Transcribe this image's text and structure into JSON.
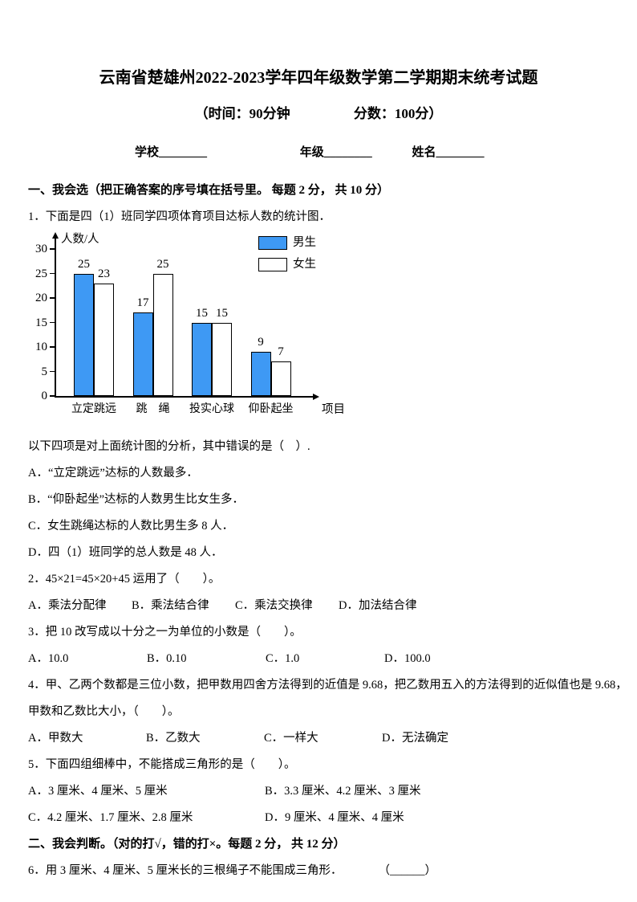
{
  "title": "云南省楚雄州2022-2023学年四年级数学第二学期期末统考试题",
  "subtitle": {
    "time": "（时间：90分钟",
    "score": "分数：100分）"
  },
  "fields": {
    "school": "学校________",
    "grade": "年级________",
    "name": "姓名________"
  },
  "section_one": {
    "heading": "一、我会选（把正确答案的序号填在括号里。 每题 2 分， 共 10 分）"
  },
  "q1": {
    "text": "1．下面是四（1）班同学四项体育项目达标人数的统计图．",
    "analysis": "以下四项是对上面统计图的分析，其中错误的是（　）.",
    "options": [
      "A．“立定跳远”达标的人数最多．",
      "B．“仰卧起坐”达标的人数男生比女生多．",
      "C．女生跳绳达标的人数比男生多 8 人．",
      "D．四（1）班同学的总人数是 48 人．"
    ]
  },
  "q2": {
    "text": "2．45×21=45×20+45 运用了（　　）。",
    "options": [
      "A．乘法分配律",
      "B．乘法结合律",
      "C．乘法交换律",
      "D．加法结合律"
    ]
  },
  "q3": {
    "text": "3．把 10 改写成以十分之一为单位的小数是（　　）。",
    "options": [
      "A．10.0",
      "B．0.10",
      "C．1.0",
      "D．100.0"
    ]
  },
  "q4": {
    "line1": "4．甲、乙两个数都是三位小数，把甲数用四舍方法得到的近值是 9.68，把乙数用五入的方法得到的近似值也是 9.68，",
    "line2": "甲数和乙数比大小，（　　）。",
    "options": [
      "A．甲数大",
      "B．乙数大",
      "C．一样大",
      "D．无法确定"
    ]
  },
  "q5": {
    "text": "5．下面四组细棒中，不能搭成三角形的是（　　）。",
    "row1": [
      "A．3 厘米、4 厘米、5 厘米",
      "B．3.3 厘米、4.2 厘米、3 厘米"
    ],
    "row2": [
      "C．4.2 厘米、1.7 厘米、2.8 厘米",
      "D．9 厘米、4 厘米、4 厘米"
    ]
  },
  "section_two": {
    "heading": "二、我会判断。（对的打√，错的打×。每题 2 分， 共 12 分）"
  },
  "q6": {
    "text": "6．用 3 厘米、4 厘米、5 厘米长的三根绳子不能围成三角形．",
    "blank": "（______）"
  },
  "chart_data": {
    "type": "bar",
    "title": "",
    "categories": [
      "立定跳远",
      "跳　绳",
      "投实心球",
      "仰卧起坐"
    ],
    "series": [
      {
        "name": "男生",
        "color": "#3e99f4",
        "values": [
          25,
          17,
          15,
          9
        ]
      },
      {
        "name": "女生",
        "color": "#ffffff",
        "values": [
          23,
          25,
          15,
          7
        ]
      }
    ],
    "xlabel": "项目",
    "ylabel": "人数/人",
    "yticks": [
      0,
      5,
      10,
      15,
      20,
      25,
      30
    ],
    "ylim": [
      0,
      33
    ],
    "grid": false,
    "legend_position": "top-right"
  }
}
